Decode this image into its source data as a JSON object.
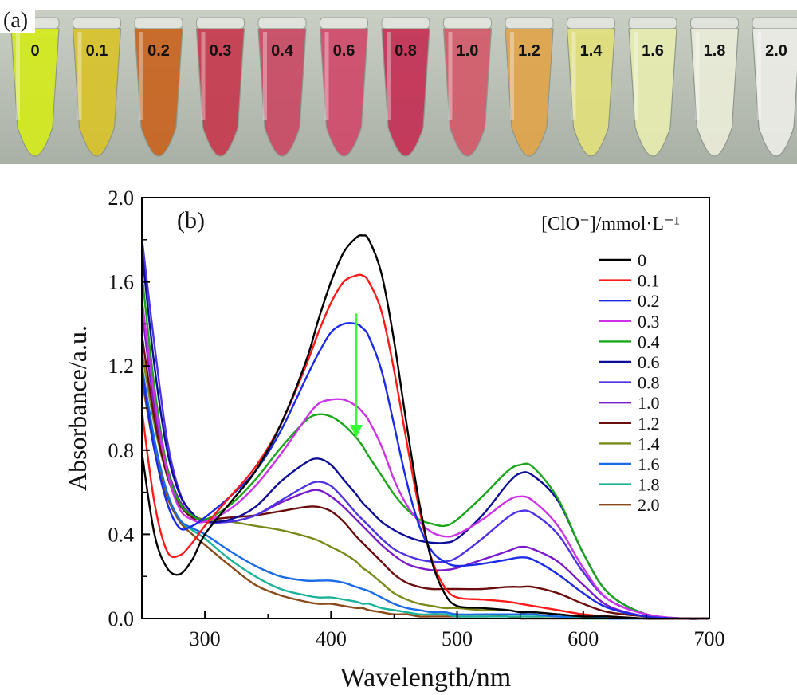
{
  "photo": {
    "panel_label": "(a)",
    "tubes": [
      {
        "label": "0",
        "color": "#d2ea1c"
      },
      {
        "label": "0.1",
        "color": "#d8c22a"
      },
      {
        "label": "0.2",
        "color": "#c8641f"
      },
      {
        "label": "0.3",
        "color": "#c63a4d"
      },
      {
        "label": "0.4",
        "color": "#c94a64"
      },
      {
        "label": "0.6",
        "color": "#cf4a6a"
      },
      {
        "label": "0.8",
        "color": "#c43055"
      },
      {
        "label": "1.0",
        "color": "#d35a69"
      },
      {
        "label": "1.2",
        "color": "#dfa44a"
      },
      {
        "label": "1.4",
        "color": "#e1e07c"
      },
      {
        "label": "1.6",
        "color": "#e6ebb0"
      },
      {
        "label": "1.8",
        "color": "#e9ecd8"
      },
      {
        "label": "2.0",
        "color": "#ebece6"
      }
    ]
  },
  "chart_data": {
    "type": "line",
    "panel_label": "(b)",
    "xlabel": "Wavelength/nm",
    "ylabel": "Absorbance/a.u.",
    "xlim": [
      250,
      700
    ],
    "ylim": [
      0.0,
      2.0
    ],
    "xticks": [
      "300",
      "400",
      "500",
      "600",
      "700"
    ],
    "yticks": [
      "0.0",
      "0.4",
      "0.8",
      "1.2",
      "1.6",
      "2.0"
    ],
    "legend_title": "[ClO⁻]/mmol·L⁻¹",
    "legend_position": "right",
    "grid": false,
    "arrow": {
      "x": 420,
      "y_from": 1.45,
      "y_to": 0.86,
      "color": "#33ff33"
    },
    "x": [
      250,
      260,
      270,
      280,
      290,
      300,
      320,
      340,
      360,
      380,
      390,
      400,
      410,
      420,
      425,
      430,
      440,
      450,
      460,
      470,
      480,
      490,
      500,
      520,
      540,
      550,
      560,
      580,
      600,
      620,
      650,
      680,
      700
    ],
    "series": [
      {
        "name": "0",
        "color": "#000000",
        "values": [
          0.79,
          0.4,
          0.24,
          0.21,
          0.28,
          0.4,
          0.55,
          0.7,
          0.92,
          1.22,
          1.42,
          1.6,
          1.74,
          1.81,
          1.82,
          1.8,
          1.64,
          1.32,
          0.92,
          0.55,
          0.27,
          0.12,
          0.06,
          0.05,
          0.04,
          0.03,
          0.03,
          0.02,
          0.01,
          0.01,
          0.0,
          0.0,
          0.0
        ]
      },
      {
        "name": "0.1",
        "color": "#ff1a1a",
        "values": [
          0.99,
          0.55,
          0.32,
          0.3,
          0.36,
          0.44,
          0.58,
          0.72,
          0.92,
          1.2,
          1.36,
          1.5,
          1.6,
          1.63,
          1.63,
          1.6,
          1.46,
          1.18,
          0.84,
          0.52,
          0.28,
          0.15,
          0.1,
          0.09,
          0.08,
          0.07,
          0.06,
          0.04,
          0.02,
          0.01,
          0.0,
          0.0,
          0.0
        ]
      },
      {
        "name": "0.2",
        "color": "#1a2ae6",
        "values": [
          1.18,
          0.8,
          0.55,
          0.43,
          0.44,
          0.48,
          0.58,
          0.7,
          0.89,
          1.14,
          1.26,
          1.36,
          1.4,
          1.4,
          1.38,
          1.34,
          1.18,
          0.92,
          0.65,
          0.44,
          0.32,
          0.27,
          0.25,
          0.26,
          0.28,
          0.29,
          0.28,
          0.21,
          0.12,
          0.05,
          0.01,
          0.0,
          0.0
        ]
      },
      {
        "name": "0.3",
        "color": "#cc33e6",
        "values": [
          1.52,
          1.05,
          0.7,
          0.52,
          0.47,
          0.46,
          0.52,
          0.63,
          0.78,
          0.95,
          1.02,
          1.04,
          1.04,
          1.01,
          0.98,
          0.94,
          0.82,
          0.66,
          0.54,
          0.46,
          0.41,
          0.39,
          0.4,
          0.47,
          0.56,
          0.58,
          0.56,
          0.44,
          0.24,
          0.09,
          0.02,
          0.0,
          0.0
        ]
      },
      {
        "name": "0.4",
        "color": "#1aa61a",
        "values": [
          1.64,
          1.1,
          0.72,
          0.55,
          0.49,
          0.47,
          0.54,
          0.66,
          0.81,
          0.94,
          0.97,
          0.96,
          0.92,
          0.86,
          0.82,
          0.77,
          0.68,
          0.59,
          0.52,
          0.47,
          0.45,
          0.44,
          0.47,
          0.58,
          0.7,
          0.73,
          0.72,
          0.57,
          0.31,
          0.12,
          0.02,
          0.0,
          0.0
        ]
      },
      {
        "name": "0.6",
        "color": "#0d0d99",
        "values": [
          1.75,
          1.2,
          0.8,
          0.59,
          0.5,
          0.46,
          0.47,
          0.53,
          0.65,
          0.74,
          0.76,
          0.73,
          0.66,
          0.59,
          0.55,
          0.52,
          0.46,
          0.42,
          0.39,
          0.37,
          0.36,
          0.36,
          0.38,
          0.49,
          0.64,
          0.69,
          0.68,
          0.56,
          0.31,
          0.12,
          0.02,
          0.0,
          0.0
        ]
      },
      {
        "name": "0.8",
        "color": "#4d33e6",
        "values": [
          1.81,
          1.3,
          0.85,
          0.6,
          0.5,
          0.46,
          0.46,
          0.49,
          0.56,
          0.63,
          0.65,
          0.63,
          0.57,
          0.5,
          0.47,
          0.44,
          0.38,
          0.33,
          0.3,
          0.28,
          0.27,
          0.27,
          0.29,
          0.38,
          0.48,
          0.51,
          0.5,
          0.4,
          0.22,
          0.09,
          0.02,
          0.0,
          0.0
        ]
      },
      {
        "name": "1.0",
        "color": "#7a1acc",
        "values": [
          1.47,
          1.0,
          0.72,
          0.56,
          0.49,
          0.46,
          0.46,
          0.49,
          0.55,
          0.6,
          0.61,
          0.58,
          0.53,
          0.47,
          0.44,
          0.41,
          0.35,
          0.3,
          0.26,
          0.24,
          0.23,
          0.23,
          0.24,
          0.28,
          0.32,
          0.34,
          0.33,
          0.27,
          0.16,
          0.06,
          0.01,
          0.0,
          0.0
        ]
      },
      {
        "name": "1.2",
        "color": "#6b0d0d",
        "values": [
          1.35,
          0.95,
          0.68,
          0.54,
          0.48,
          0.47,
          0.48,
          0.49,
          0.51,
          0.53,
          0.53,
          0.51,
          0.46,
          0.39,
          0.36,
          0.33,
          0.27,
          0.21,
          0.17,
          0.15,
          0.14,
          0.14,
          0.14,
          0.14,
          0.15,
          0.15,
          0.15,
          0.12,
          0.07,
          0.03,
          0.01,
          0.0,
          0.0
        ]
      },
      {
        "name": "1.4",
        "color": "#7a8a1a",
        "values": [
          1.27,
          0.92,
          0.68,
          0.54,
          0.49,
          0.47,
          0.46,
          0.44,
          0.42,
          0.39,
          0.37,
          0.34,
          0.31,
          0.27,
          0.24,
          0.22,
          0.17,
          0.12,
          0.09,
          0.07,
          0.06,
          0.05,
          0.05,
          0.04,
          0.04,
          0.03,
          0.03,
          0.02,
          0.01,
          0.01,
          0.0,
          0.0,
          0.0
        ]
      },
      {
        "name": "1.6",
        "color": "#1a6be6",
        "values": [
          1.2,
          0.85,
          0.6,
          0.47,
          0.43,
          0.4,
          0.32,
          0.25,
          0.2,
          0.18,
          0.18,
          0.18,
          0.17,
          0.15,
          0.14,
          0.13,
          0.1,
          0.07,
          0.05,
          0.04,
          0.03,
          0.03,
          0.02,
          0.02,
          0.02,
          0.02,
          0.02,
          0.01,
          0.01,
          0.0,
          0.0,
          0.0,
          0.0
        ]
      },
      {
        "name": "1.8",
        "color": "#1ab39a",
        "values": [
          1.2,
          0.85,
          0.6,
          0.47,
          0.42,
          0.38,
          0.28,
          0.2,
          0.14,
          0.11,
          0.1,
          0.1,
          0.09,
          0.08,
          0.07,
          0.07,
          0.05,
          0.04,
          0.03,
          0.02,
          0.02,
          0.02,
          0.01,
          0.01,
          0.01,
          0.01,
          0.01,
          0.01,
          0.0,
          0.0,
          0.0,
          0.0,
          0.0
        ]
      },
      {
        "name": "2.0",
        "color": "#8a4a1a",
        "values": [
          1.14,
          0.8,
          0.58,
          0.46,
          0.4,
          0.35,
          0.25,
          0.16,
          0.11,
          0.08,
          0.07,
          0.07,
          0.06,
          0.05,
          0.05,
          0.04,
          0.03,
          0.02,
          0.02,
          0.01,
          0.01,
          0.01,
          0.01,
          0.01,
          0.01,
          0.0,
          0.0,
          0.0,
          0.0,
          0.0,
          0.0,
          0.0,
          0.0
        ]
      }
    ]
  }
}
